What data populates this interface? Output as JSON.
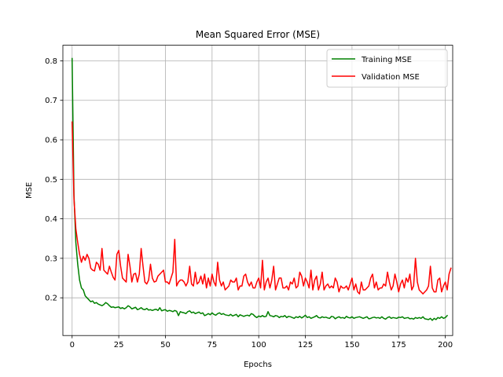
{
  "chart_data": {
    "type": "line",
    "title": "Mean Squared Error (MSE)",
    "xlabel": "Epochs",
    "ylabel": "MSE",
    "xlim": [
      -4.95,
      203.95
    ],
    "ylim": [
      0.1045,
      0.8395
    ],
    "xticks": [
      0,
      25,
      50,
      75,
      100,
      125,
      150,
      175,
      200
    ],
    "yticks": [
      0.2,
      0.3,
      0.4,
      0.5,
      0.6,
      0.7,
      0.8
    ],
    "grid": true,
    "legend_position": "top-right",
    "series": [
      {
        "name": "Training MSE",
        "color": "#008000",
        "values": [
          0.806,
          0.46,
          0.34,
          0.285,
          0.245,
          0.225,
          0.22,
          0.205,
          0.2,
          0.195,
          0.19,
          0.192,
          0.186,
          0.188,
          0.184,
          0.182,
          0.18,
          0.183,
          0.188,
          0.185,
          0.18,
          0.176,
          0.177,
          0.175,
          0.176,
          0.177,
          0.173,
          0.175,
          0.172,
          0.175,
          0.18,
          0.177,
          0.172,
          0.174,
          0.176,
          0.17,
          0.172,
          0.175,
          0.171,
          0.17,
          0.173,
          0.169,
          0.17,
          0.168,
          0.17,
          0.171,
          0.168,
          0.175,
          0.167,
          0.169,
          0.17,
          0.166,
          0.168,
          0.167,
          0.165,
          0.168,
          0.166,
          0.155,
          0.165,
          0.163,
          0.162,
          0.16,
          0.165,
          0.167,
          0.162,
          0.164,
          0.16,
          0.162,
          0.164,
          0.16,
          0.162,
          0.155,
          0.157,
          0.16,
          0.157,
          0.162,
          0.158,
          0.156,
          0.16,
          0.162,
          0.158,
          0.16,
          0.157,
          0.156,
          0.155,
          0.158,
          0.154,
          0.156,
          0.158,
          0.152,
          0.157,
          0.155,
          0.153,
          0.155,
          0.156,
          0.154,
          0.16,
          0.158,
          0.153,
          0.15,
          0.154,
          0.152,
          0.155,
          0.152,
          0.153,
          0.165,
          0.155,
          0.154,
          0.152,
          0.155,
          0.154,
          0.15,
          0.153,
          0.152,
          0.155,
          0.15,
          0.153,
          0.152,
          0.15,
          0.148,
          0.152,
          0.15,
          0.153,
          0.149,
          0.152,
          0.156,
          0.15,
          0.152,
          0.148,
          0.15,
          0.152,
          0.155,
          0.15,
          0.149,
          0.152,
          0.15,
          0.151,
          0.149,
          0.148,
          0.153,
          0.152,
          0.147,
          0.15,
          0.152,
          0.149,
          0.15,
          0.148,
          0.153,
          0.15,
          0.149,
          0.152,
          0.148,
          0.15,
          0.151,
          0.152,
          0.15,
          0.148,
          0.15,
          0.152,
          0.147,
          0.148,
          0.15,
          0.151,
          0.149,
          0.15,
          0.148,
          0.152,
          0.148,
          0.146,
          0.15,
          0.152,
          0.148,
          0.15,
          0.149,
          0.148,
          0.151,
          0.15,
          0.152,
          0.148,
          0.149,
          0.15,
          0.147,
          0.148,
          0.146,
          0.15,
          0.148,
          0.15,
          0.148,
          0.152,
          0.147,
          0.146,
          0.145,
          0.148,
          0.143,
          0.148,
          0.145,
          0.15,
          0.148,
          0.152,
          0.148,
          0.15,
          0.155
        ]
      },
      {
        "name": "Validation MSE",
        "color": "#ff0000",
        "values": [
          0.645,
          0.45,
          0.375,
          0.34,
          0.31,
          0.29,
          0.305,
          0.295,
          0.31,
          0.3,
          0.275,
          0.27,
          0.268,
          0.29,
          0.285,
          0.27,
          0.325,
          0.27,
          0.265,
          0.26,
          0.28,
          0.265,
          0.252,
          0.245,
          0.31,
          0.32,
          0.28,
          0.25,
          0.245,
          0.24,
          0.31,
          0.28,
          0.24,
          0.26,
          0.262,
          0.24,
          0.26,
          0.325,
          0.28,
          0.24,
          0.235,
          0.245,
          0.285,
          0.25,
          0.24,
          0.242,
          0.255,
          0.26,
          0.265,
          0.27,
          0.24,
          0.24,
          0.235,
          0.25,
          0.265,
          0.348,
          0.23,
          0.24,
          0.245,
          0.245,
          0.24,
          0.23,
          0.24,
          0.28,
          0.235,
          0.23,
          0.265,
          0.235,
          0.24,
          0.255,
          0.235,
          0.26,
          0.225,
          0.25,
          0.23,
          0.26,
          0.24,
          0.23,
          0.29,
          0.245,
          0.23,
          0.24,
          0.22,
          0.225,
          0.23,
          0.245,
          0.24,
          0.24,
          0.25,
          0.22,
          0.23,
          0.23,
          0.255,
          0.26,
          0.24,
          0.23,
          0.24,
          0.225,
          0.225,
          0.24,
          0.25,
          0.225,
          0.295,
          0.22,
          0.24,
          0.25,
          0.225,
          0.245,
          0.28,
          0.22,
          0.235,
          0.25,
          0.25,
          0.225,
          0.225,
          0.23,
          0.22,
          0.24,
          0.235,
          0.25,
          0.225,
          0.23,
          0.265,
          0.255,
          0.23,
          0.25,
          0.24,
          0.225,
          0.27,
          0.22,
          0.245,
          0.255,
          0.22,
          0.235,
          0.265,
          0.22,
          0.23,
          0.235,
          0.225,
          0.23,
          0.225,
          0.25,
          0.24,
          0.215,
          0.23,
          0.225,
          0.225,
          0.23,
          0.22,
          0.235,
          0.25,
          0.22,
          0.235,
          0.215,
          0.21,
          0.24,
          0.22,
          0.22,
          0.225,
          0.23,
          0.25,
          0.26,
          0.225,
          0.24,
          0.22,
          0.225,
          0.225,
          0.235,
          0.23,
          0.265,
          0.24,
          0.22,
          0.23,
          0.26,
          0.24,
          0.215,
          0.235,
          0.245,
          0.225,
          0.25,
          0.24,
          0.26,
          0.22,
          0.23,
          0.3,
          0.24,
          0.22,
          0.215,
          0.21,
          0.215,
          0.22,
          0.23,
          0.28,
          0.225,
          0.215,
          0.215,
          0.245,
          0.25,
          0.215,
          0.23,
          0.24,
          0.22,
          0.26,
          0.275
        ]
      }
    ]
  }
}
